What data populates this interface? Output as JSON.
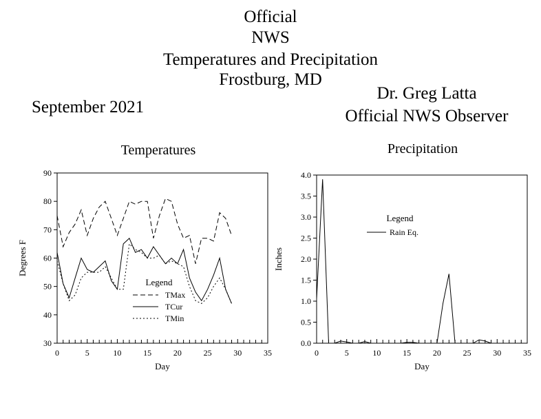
{
  "header": {
    "lines": [
      "Official",
      "NWS",
      "Temperatures and Precipitation",
      "Frostburg, MD"
    ],
    "month": "September 2021",
    "observer_name": "Dr. Greg Latta",
    "observer_title": "Official NWS Observer"
  },
  "chart_data": [
    {
      "type": "line",
      "title": "Temperatures",
      "xlabel": "Day",
      "ylabel": "Degrees F",
      "xlim": [
        0,
        35
      ],
      "ylim": [
        30,
        90
      ],
      "x_ticks": [
        0,
        5,
        10,
        15,
        20,
        25,
        30,
        35
      ],
      "y_ticks": [
        30,
        40,
        50,
        60,
        70,
        80,
        90
      ],
      "grid": false,
      "legend": {
        "title": "Legend",
        "placement": "lower-center"
      },
      "series": [
        {
          "name": "TMax",
          "style": "dashed",
          "x": [
            0,
            1,
            2,
            3,
            4,
            5,
            6,
            7,
            8,
            9,
            10,
            11,
            12,
            13,
            14,
            15,
            16,
            17,
            18,
            19,
            20,
            21,
            22,
            23,
            24,
            25,
            26,
            27,
            28,
            29
          ],
          "values": [
            75,
            64,
            69,
            72,
            77,
            68,
            74,
            78,
            80,
            74,
            68,
            74,
            80,
            79,
            80,
            80,
            67,
            75,
            81,
            80,
            72,
            67,
            68,
            58,
            67,
            67,
            66,
            76,
            74,
            68
          ]
        },
        {
          "name": "TCur",
          "style": "solid",
          "x": [
            0,
            1,
            2,
            3,
            4,
            5,
            6,
            7,
            8,
            9,
            10,
            11,
            12,
            13,
            14,
            15,
            16,
            17,
            18,
            19,
            20,
            21,
            22,
            23,
            24,
            25,
            26,
            27,
            28,
            29
          ],
          "values": [
            62,
            51,
            46,
            53,
            60,
            56,
            55,
            57,
            59,
            52,
            49,
            65,
            67,
            62,
            63,
            60,
            64,
            61,
            58,
            60,
            58,
            63,
            53,
            48,
            45,
            49,
            54,
            60,
            49,
            44
          ]
        },
        {
          "name": "TMin",
          "style": "dotted",
          "x": [
            0,
            1,
            2,
            3,
            4,
            5,
            6,
            7,
            8,
            9,
            10,
            11,
            12,
            13,
            14,
            15,
            16,
            17,
            18,
            19,
            20,
            21,
            22,
            23,
            24,
            25,
            26,
            27,
            28,
            29
          ],
          "values": [
            59,
            51,
            45,
            47,
            53,
            55,
            55,
            55,
            57,
            53,
            49,
            49,
            65,
            63,
            62,
            60,
            60,
            61,
            58,
            59,
            58,
            57,
            50,
            45,
            44,
            46,
            50,
            53,
            49,
            44
          ]
        }
      ]
    },
    {
      "type": "line",
      "title": "Precipitation",
      "xlabel": "Day",
      "ylabel": "Inches",
      "xlim": [
        0,
        35
      ],
      "ylim": [
        0,
        4
      ],
      "x_ticks": [
        0,
        5,
        10,
        15,
        20,
        25,
        30,
        35
      ],
      "y_ticks": [
        "0.0",
        "0.5",
        "1.0",
        "1.5",
        "2.0",
        "2.5",
        "3.0",
        "3.5",
        "4.0"
      ],
      "grid": false,
      "legend": {
        "title": "Legend",
        "placement": "upper-center"
      },
      "series": [
        {
          "name": "Rain Eq.",
          "style": "solid",
          "x": [
            0,
            1,
            2,
            3,
            4,
            5,
            6,
            7,
            8,
            9,
            10,
            11,
            12,
            13,
            14,
            15,
            16,
            17,
            18,
            19,
            20,
            21,
            22,
            23,
            24,
            25,
            26,
            27,
            28,
            29
          ],
          "values": [
            1.05,
            3.9,
            0,
            0,
            0.05,
            0.03,
            0,
            0,
            0.04,
            0,
            0,
            0,
            0,
            0,
            0,
            0.02,
            0.02,
            0,
            0,
            0,
            0,
            0.95,
            1.65,
            0,
            0,
            0,
            0,
            0.08,
            0.05,
            0
          ]
        }
      ]
    }
  ]
}
